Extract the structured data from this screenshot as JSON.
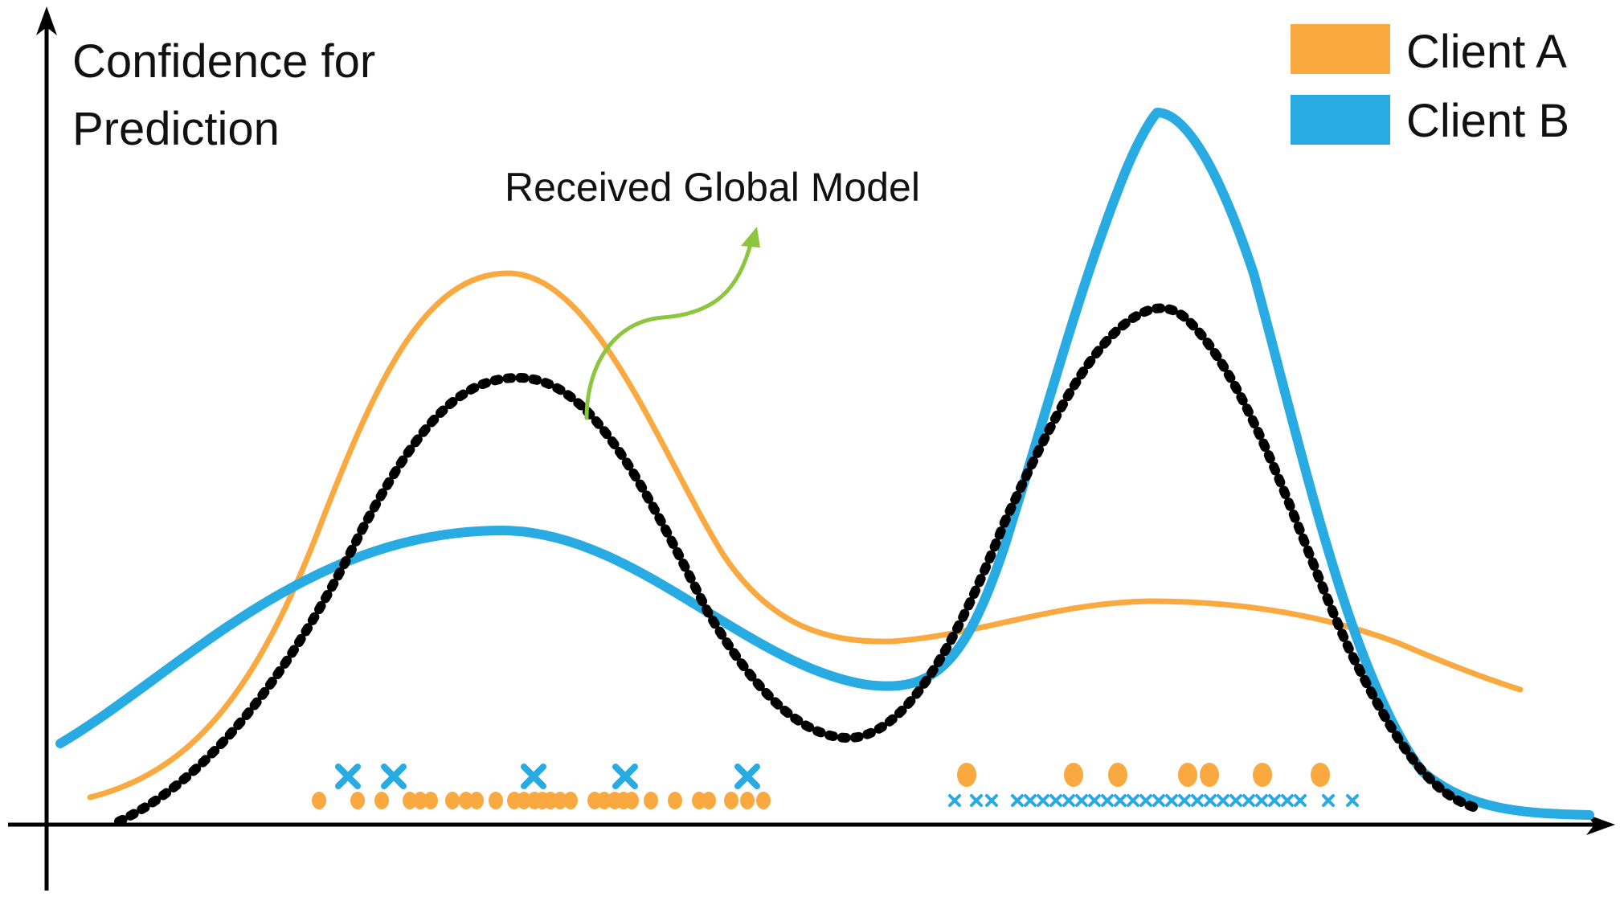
{
  "diagram": {
    "y_axis_label_line1": "Confidence for",
    "y_axis_label_line2": "Prediction",
    "annotation": "Received Global Model",
    "legend": [
      {
        "label": "Client A",
        "color": "#F9A940"
      },
      {
        "label": "Client B",
        "color": "#28ABE2"
      }
    ],
    "colors": {
      "client_a": "#F9A940",
      "client_b": "#28ABE2",
      "global": "#000000",
      "arrow": "#8CC63F",
      "axis": "#000000"
    }
  }
}
